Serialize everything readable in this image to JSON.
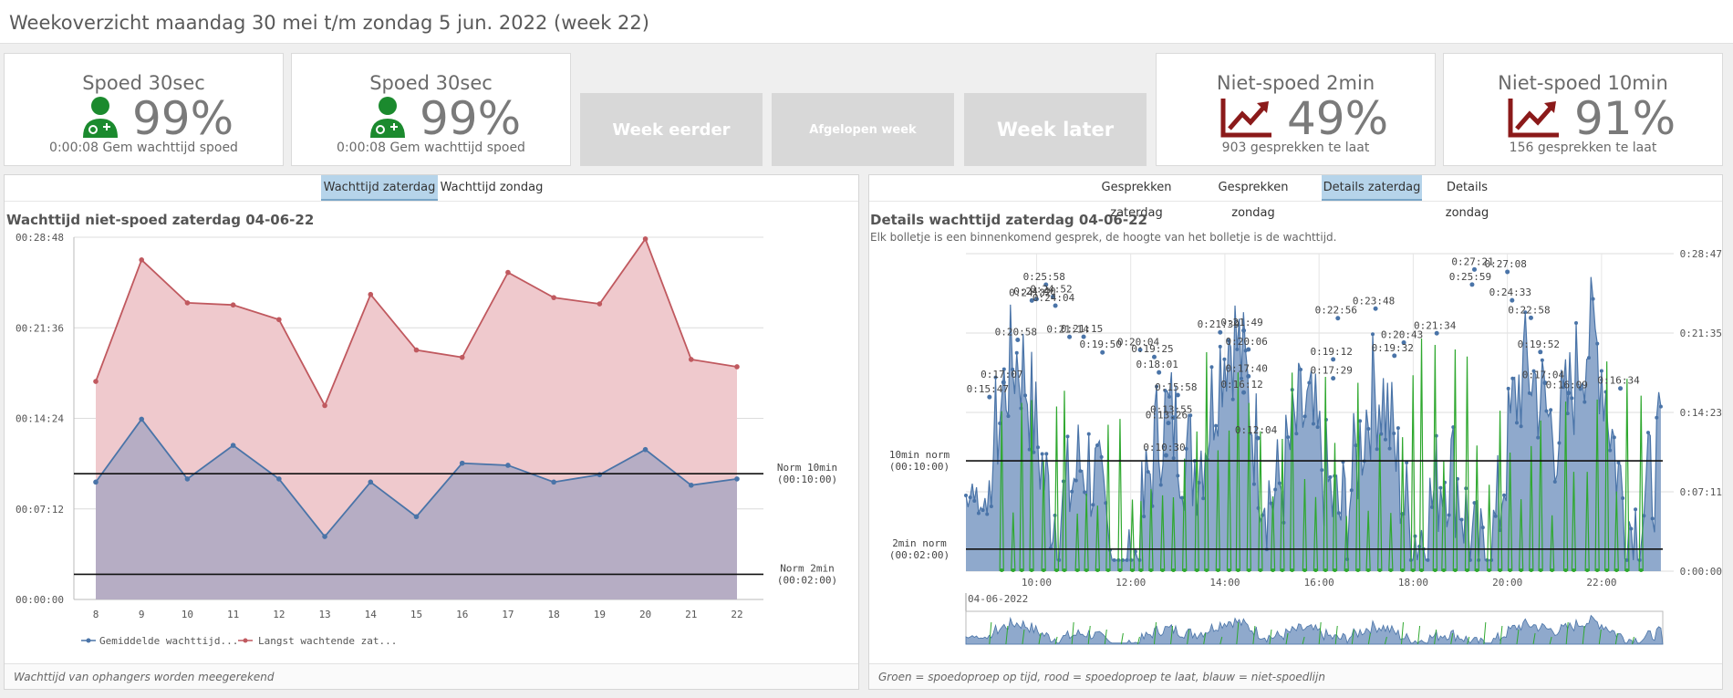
{
  "title": "Weekoverzicht maandag 30 mei t/m zondag 5 jun. 2022 (week 22)",
  "colors": {
    "red": "#c0595f",
    "redFill": "#efc9cd",
    "blue": "#4a74a8",
    "blueFill": "#8fa9cc",
    "green": "#2fa82f",
    "icon_green": "#1b8a2e",
    "icon_red": "#8b1a1a",
    "purpleFill": "#b6adc4"
  },
  "kpis": [
    {
      "title": "Spoed 30sec",
      "value": "99%",
      "sub": "0:00:08 Gem wachttijd spoed",
      "icon": "doctor-icon"
    },
    {
      "title": "Spoed 30sec",
      "value": "99%",
      "sub": "0:00:08 Gem wachttijd spoed",
      "icon": "doctor-icon"
    },
    {
      "title": "Niet-spoed 2min",
      "value": "49%",
      "sub": "903 gesprekken te laat",
      "icon": "trend-up-icon"
    },
    {
      "title": "Niet-spoed 10min",
      "value": "91%",
      "sub": "156 gesprekken te laat",
      "icon": "trend-up-icon"
    }
  ],
  "nav": {
    "prev": "Week eerder",
    "current": "Afgelopen week",
    "next": "Week later"
  },
  "left_panel": {
    "tabs": [
      "Wachttijd zaterdag",
      "Wachttijd zondag"
    ],
    "active_tab": 0,
    "chart_title": "Wachttijd niet-spoed zaterdag 04-06-22",
    "footer": "Wachttijd van ophangers worden meegerekend",
    "norm10": [
      "Norm 10min",
      "(00:10:00)"
    ],
    "norm2": [
      "Norm 2min",
      "(00:02:00)"
    ],
    "legend": [
      "Gemiddelde wachttijd...",
      "Langst wachtende zat..."
    ]
  },
  "right_panel": {
    "tabs": [
      "Gesprekken zaterdag",
      "Gesprekken zondag",
      "Details zaterdag",
      "Details zondag"
    ],
    "active_tab": 2,
    "chart_title": "Details wachttijd zaterdag 04-06-22",
    "subtitle": "Elk bolletje is een binnenkomend gesprek, de hoogte van het bolletje is de wachttijd.",
    "footer": "Groen = spoedoproep op tijd, rood = spoedoproep te laat, blauw = niet-spoedlijn",
    "norm10": [
      "10min norm",
      "(00:10:00)"
    ],
    "norm2": [
      "2min norm",
      "(00:02:00)"
    ],
    "date_label": "04-06-2022"
  },
  "chart_data": [
    {
      "type": "area",
      "title": "Wachttijd niet-spoed zaterdag 04-06-22",
      "x": [
        8,
        9,
        10,
        11,
        12,
        13,
        14,
        15,
        16,
        17,
        18,
        19,
        20,
        21,
        22
      ],
      "y_ticks": [
        "00:00:00",
        "00:07:12",
        "00:14:24",
        "00:21:36",
        "00:28:48"
      ],
      "ylim_seconds": [
        0,
        1728
      ],
      "series": [
        {
          "name": "Langst wachtende zat...",
          "values_seconds": [
            1040,
            1620,
            1415,
            1405,
            1335,
            925,
            1455,
            1190,
            1155,
            1560,
            1440,
            1410,
            1720,
            1145,
            1110
          ]
        },
        {
          "name": "Gemiddelde wachttijd...",
          "values_seconds": [
            560,
            860,
            575,
            735,
            575,
            300,
            560,
            395,
            650,
            640,
            560,
            595,
            715,
            545,
            575
          ]
        }
      ],
      "reference_lines_seconds": [
        600,
        120
      ],
      "legend": "bottom"
    },
    {
      "type": "area",
      "title": "Details wachttijd zaterdag 04-06-22",
      "x_ticks": [
        "10:00",
        "12:00",
        "14:00",
        "16:00",
        "18:00",
        "20:00",
        "22:00"
      ],
      "x_range_hours": [
        8.5,
        23.3
      ],
      "y_ticks": [
        "0:00:00",
        "0:07:11",
        "0:14:23",
        "0:21:35",
        "0:28:47"
      ],
      "ylim_seconds": [
        0,
        1727
      ],
      "annotations": [
        {
          "label": "0:15:47",
          "x_hours": 9.0,
          "seconds": 947
        },
        {
          "label": "0:17:07",
          "x_hours": 9.3,
          "seconds": 1027
        },
        {
          "label": "0:20:58",
          "x_hours": 9.6,
          "seconds": 1258
        },
        {
          "label": "0:24:32",
          "x_hours": 9.9,
          "seconds": 1472
        },
        {
          "label": "0:24:40",
          "x_hours": 10.0,
          "seconds": 1480
        },
        {
          "label": "0:25:58",
          "x_hours": 10.2,
          "seconds": 1558
        },
        {
          "label": "0:24:52",
          "x_hours": 10.35,
          "seconds": 1492
        },
        {
          "label": "0:24:04",
          "x_hours": 10.4,
          "seconds": 1444
        },
        {
          "label": "0:21:14",
          "x_hours": 10.7,
          "seconds": 1274
        },
        {
          "label": "0:21:15",
          "x_hours": 11.0,
          "seconds": 1275
        },
        {
          "label": "0:19:50",
          "x_hours": 11.4,
          "seconds": 1190
        },
        {
          "label": "0:20:04",
          "x_hours": 12.2,
          "seconds": 1204
        },
        {
          "label": "0:19:25",
          "x_hours": 12.5,
          "seconds": 1165
        },
        {
          "label": "0:18:01",
          "x_hours": 12.6,
          "seconds": 1081
        },
        {
          "label": "0:15:58",
          "x_hours": 13.0,
          "seconds": 958
        },
        {
          "label": "0:13:55",
          "x_hours": 12.9,
          "seconds": 835
        },
        {
          "label": "0:13:26",
          "x_hours": 12.8,
          "seconds": 806
        },
        {
          "label": "0:10:30",
          "x_hours": 12.75,
          "seconds": 630
        },
        {
          "label": "0:21:39",
          "x_hours": 13.9,
          "seconds": 1299
        },
        {
          "label": "0:21:49",
          "x_hours": 14.4,
          "seconds": 1309
        },
        {
          "label": "0:20:06",
          "x_hours": 14.5,
          "seconds": 1206
        },
        {
          "label": "0:17:40",
          "x_hours": 14.5,
          "seconds": 1060
        },
        {
          "label": "0:16:12",
          "x_hours": 14.4,
          "seconds": 972
        },
        {
          "label": "0:12:04",
          "x_hours": 14.7,
          "seconds": 724
        },
        {
          "label": "0:22:56",
          "x_hours": 16.4,
          "seconds": 1376
        },
        {
          "label": "0:19:12",
          "x_hours": 16.3,
          "seconds": 1152
        },
        {
          "label": "0:17:29",
          "x_hours": 16.3,
          "seconds": 1049
        },
        {
          "label": "0:23:48",
          "x_hours": 17.2,
          "seconds": 1428
        },
        {
          "label": "0:20:43",
          "x_hours": 17.8,
          "seconds": 1243
        },
        {
          "label": "0:19:32",
          "x_hours": 17.6,
          "seconds": 1172
        },
        {
          "label": "0:21:34",
          "x_hours": 18.5,
          "seconds": 1294
        },
        {
          "label": "0:27:21",
          "x_hours": 19.3,
          "seconds": 1641
        },
        {
          "label": "0:27:08",
          "x_hours": 20.0,
          "seconds": 1628
        },
        {
          "label": "0:25:59",
          "x_hours": 19.25,
          "seconds": 1559
        },
        {
          "label": "0:24:33",
          "x_hours": 20.1,
          "seconds": 1473
        },
        {
          "label": "0:22:58",
          "x_hours": 20.5,
          "seconds": 1378
        },
        {
          "label": "0:19:52",
          "x_hours": 20.7,
          "seconds": 1192
        },
        {
          "label": "0:17:04",
          "x_hours": 20.8,
          "seconds": 1024
        },
        {
          "label": "0:16:09",
          "x_hours": 21.3,
          "seconds": 969
        },
        {
          "label": "0:16:34",
          "x_hours": 22.4,
          "seconds": 994
        }
      ],
      "reference_lines_seconds": [
        600,
        120
      ]
    }
  ]
}
